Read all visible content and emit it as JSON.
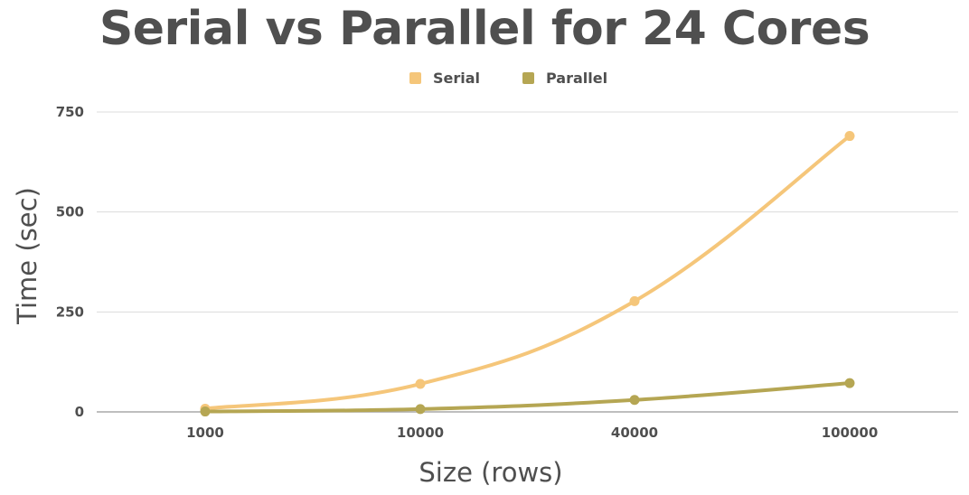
{
  "chart_data": {
    "type": "line",
    "title": "Serial vs Parallel for 24 Cores",
    "xlabel": "Size (rows)",
    "ylabel": "Time (sec)",
    "categories": [
      "1000",
      "10000",
      "40000",
      "100000"
    ],
    "ylim": [
      0,
      750
    ],
    "yticks": [
      0,
      250,
      500,
      750
    ],
    "grid": true,
    "legend_position": "top-center",
    "smooth": true,
    "series": [
      {
        "name": "Serial",
        "color": "#f5c67a",
        "values": [
          8,
          70,
          277,
          690
        ]
      },
      {
        "name": "Parallel",
        "color": "#b5a653",
        "values": [
          1,
          7,
          30,
          72
        ]
      }
    ]
  }
}
